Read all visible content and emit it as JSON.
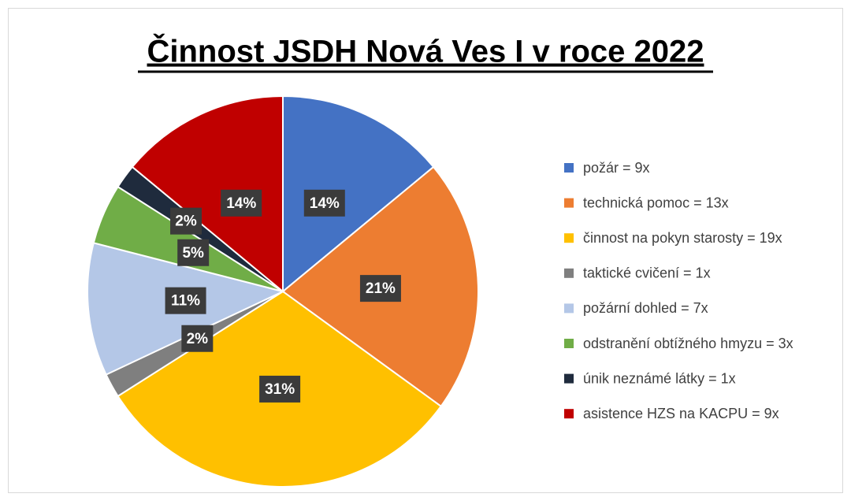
{
  "chart_data": {
    "type": "pie",
    "title": "Činnost JSDH Nová Ves I v roce 2022",
    "categories": [
      "požár = 9x",
      "technická pomoc = 13x",
      "činnost na pokyn starosty = 19x",
      "taktické cvičení = 1x",
      "požární dohled = 7x",
      "odstranění obtížného hmyzu = 3x",
      "únik neznámé látky = 1x",
      "asistence HZS na KACPU = 9x"
    ],
    "values": [
      14,
      21,
      31,
      2,
      11,
      5,
      2,
      14
    ],
    "value_labels": [
      "14%",
      "21%",
      "31%",
      "2%",
      "11%",
      "5%",
      "2%",
      "14%"
    ],
    "colors": [
      "#4472c4",
      "#ed7d31",
      "#ffc000",
      "#7f7f7f",
      "#b4c7e7",
      "#70ad47",
      "#1f2b3d",
      "#c00000"
    ],
    "legend": "right"
  }
}
